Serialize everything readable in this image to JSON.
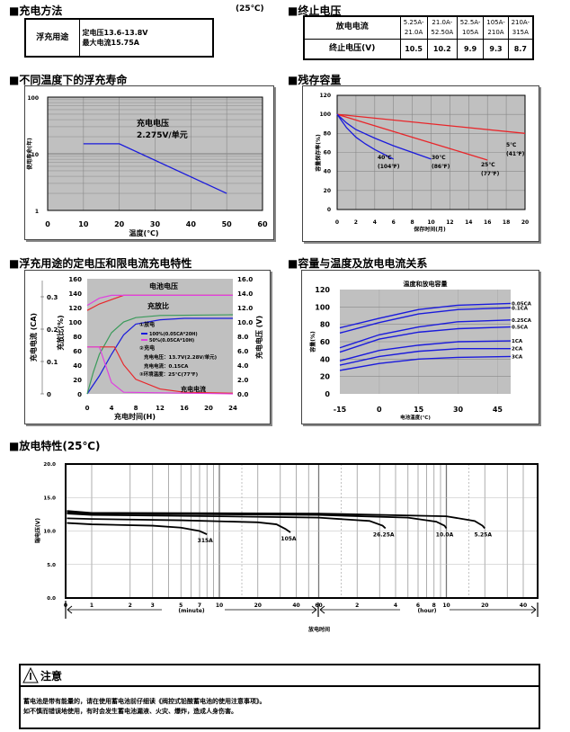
{
  "charging_method": {
    "title": "■充电方法",
    "temp": "(25℃)",
    "use": "浮充用途",
    "line1": "定电压13.6-13.8V",
    "line2": "最大电流15.75A"
  },
  "cutoff_voltage": {
    "title": "■终止电压",
    "row1_label": "放电电流",
    "row2_label": "终止电压(V)",
    "currents": [
      "5.25A-21.0A",
      "21.0A-52.50A",
      "52.5A-105A",
      "105A-210A",
      "210A-315A"
    ],
    "voltages": [
      "10.5",
      "10.2",
      "9.9",
      "9.3",
      "8.7"
    ]
  },
  "headings": {
    "float_life": "■不同温度下的浮充寿命",
    "residual": "■残存容量",
    "charging": "■浮充用途的定电压和限电流充电特性",
    "temp_capacity": "■容量与温度及放电电流关系",
    "discharge": "■放电特性(25℃)"
  },
  "warning": {
    "title": "注意",
    "line1": "蓄电池是带有能量的，请在使用蓄电池前仔细读《阀控式铅酸蓄电池的使用注意事项》。",
    "line2": "如不慎而错误地使用，有时会发生蓄电池漏液、火灾、爆炸，造成人身伤害。"
  },
  "colors": {
    "blue": "#1a1adc",
    "red": "#e8262a",
    "magenta": "#e040e0",
    "green": "#3a9a5a",
    "plot_bg": "#c0c0c0",
    "black": "#000000"
  },
  "chart_data": [
    {
      "type": "line",
      "id": "float_life",
      "title": "",
      "xlabel": "温度(℃)",
      "ylabel": "使用寿命(年)",
      "xlim": [
        0,
        60
      ],
      "ylim": [
        1,
        100
      ],
      "yscale": "log",
      "xticks": [
        "0",
        "10",
        "20",
        "30",
        "40",
        "50",
        "60"
      ],
      "yticks": [
        "1",
        "10",
        "100"
      ],
      "series": [
        {
          "name": "2.275V/单元",
          "color": "#1a1adc",
          "points": [
            [
              10,
              15
            ],
            [
              20,
              15
            ],
            [
              50,
              2
            ]
          ]
        }
      ],
      "annotations": [
        "充电电压",
        "2.275V/单元"
      ]
    },
    {
      "type": "line",
      "id": "residual",
      "title": "",
      "xlabel": "保存时间(月)",
      "ylabel": "容量保存率(%)",
      "xlim": [
        0,
        20
      ],
      "ylim": [
        0,
        120
      ],
      "xticks": [
        "0",
        "2",
        "4",
        "6",
        "8",
        "10",
        "12",
        "14",
        "16",
        "18",
        "20"
      ],
      "yticks": [
        "0",
        "20",
        "40",
        "60",
        "80",
        "100",
        "120"
      ],
      "series": [
        {
          "name": "5℃",
          "color": "#e8262a",
          "points": [
            [
              0,
              100
            ],
            [
              20,
              80
            ]
          ]
        },
        {
          "name": "25℃",
          "color": "#e8262a",
          "points": [
            [
              0,
              100
            ],
            [
              4,
              88
            ],
            [
              8,
              76
            ],
            [
              12,
              64
            ],
            [
              16,
              52
            ]
          ]
        },
        {
          "name": "30℃",
          "color": "#1a1adc",
          "points": [
            [
              0,
              100
            ],
            [
              1,
              91
            ],
            [
              2,
              84
            ],
            [
              4,
              75
            ],
            [
              6,
              67
            ],
            [
              8,
              60
            ],
            [
              10,
              53
            ]
          ]
        },
        {
          "name": "40℃",
          "color": "#1a1adc",
          "points": [
            [
              0,
              100
            ],
            [
              1,
              86
            ],
            [
              2,
              76
            ],
            [
              3,
              69
            ],
            [
              4,
              63
            ],
            [
              6,
              53
            ]
          ]
        }
      ],
      "annotations": [
        "5℃",
        "(41℉)",
        "25℃",
        "(77℉)",
        "30℃",
        "(86℉)",
        "40℃",
        "(104℉)"
      ]
    },
    {
      "type": "line",
      "id": "charging",
      "title": "",
      "xlabel": "充电时间(H)",
      "ylabel_left_current": "充电电流 (CA)",
      "ylabel_left": "充放比(%)",
      "ylabel_right": "充电电压 (V)",
      "xlim": [
        0,
        24
      ],
      "ylim": [
        0,
        160
      ],
      "ylim_right": [
        0,
        16
      ],
      "xticks": [
        "0",
        "4",
        "8",
        "12",
        "16",
        "20",
        "24"
      ],
      "yticks": [
        "0",
        "20",
        "40",
        "60",
        "80",
        "100",
        "120",
        "140",
        "160"
      ],
      "yticks_right": [
        "0.0",
        "2.0",
        "4.0",
        "6.0",
        "8.0",
        "10.0",
        "12.0",
        "14.0",
        "16.0"
      ],
      "current_ticks": [
        "0",
        "0.1",
        "0.2",
        "0.3"
      ],
      "series": [
        {
          "name": "电池电压 100%",
          "axis": "V",
          "color": "#e8262a",
          "points": [
            [
              0,
              11.6
            ],
            [
              2,
              12.5
            ],
            [
              4,
              13.1
            ],
            [
              6,
              13.7
            ],
            [
              24,
              13.7
            ]
          ]
        },
        {
          "name": "电池电压 50%",
          "axis": "V",
          "color": "#e040e0",
          "points": [
            [
              0,
              12.3
            ],
            [
              2,
              13.3
            ],
            [
              4,
              13.7
            ],
            [
              24,
              13.7
            ]
          ]
        },
        {
          "name": "充放比 100%",
          "axis": "%",
          "color": "#1a1adc",
          "points": [
            [
              0,
              0
            ],
            [
              2,
              25
            ],
            [
              4,
              55
            ],
            [
              6,
              82
            ],
            [
              8,
              97
            ],
            [
              12,
              103
            ],
            [
              16,
              105
            ],
            [
              24,
              105
            ]
          ]
        },
        {
          "name": "充放比 50%",
          "axis": "%",
          "color": "#3a9a5a",
          "points": [
            [
              0,
              0
            ],
            [
              1,
              30
            ],
            [
              2,
              55
            ],
            [
              4,
              85
            ],
            [
              6,
              100
            ],
            [
              8,
              106
            ],
            [
              12,
              109
            ],
            [
              24,
              110
            ]
          ]
        },
        {
          "name": "充电电流 100%",
          "axis": "CA",
          "color": "#e8262a",
          "points": [
            [
              0,
              0.145
            ],
            [
              4.5,
              0.145
            ],
            [
              6,
              0.09
            ],
            [
              8,
              0.045
            ],
            [
              12,
              0.015
            ],
            [
              16,
              0.005
            ],
            [
              24,
              0.002
            ]
          ]
        },
        {
          "name": "充电电流 50%",
          "axis": "CA",
          "color": "#e040e0",
          "points": [
            [
              0,
              0.145
            ],
            [
              2,
              0.145
            ],
            [
              3,
              0.09
            ],
            [
              4,
              0.035
            ],
            [
              6,
              0.005
            ],
            [
              24,
              0
            ]
          ]
        }
      ],
      "annotations": [
        "电池电压",
        "充放比",
        "①放电",
        "100%(0.05CA*20H)",
        "50%(0.05CA*10H)",
        "②充电",
        "充电电压：13.7V(2.28V/单元)",
        "充电电流：0.15CA",
        "③环境温度：25℃(77℉)",
        "充电电流"
      ]
    },
    {
      "type": "line",
      "id": "temp_capacity",
      "title": "温度和放电容量",
      "xlabel": "电池温度(℃)",
      "ylabel": "容量(%)",
      "xlim": [
        -15,
        50
      ],
      "ylim": [
        0,
        120
      ],
      "xticks": [
        "-15",
        "0",
        "15",
        "30",
        "45"
      ],
      "yticks": [
        "0",
        "20",
        "40",
        "60",
        "80",
        "100",
        "120"
      ],
      "series": [
        {
          "name": "0.05CA",
          "color": "#1a1adc",
          "points": [
            [
              -15,
              76
            ],
            [
              0,
              87
            ],
            [
              15,
              97
            ],
            [
              30,
              102
            ],
            [
              50,
              104
            ]
          ]
        },
        {
          "name": "0.1CA",
          "color": "#1a1adc",
          "points": [
            [
              -15,
              70
            ],
            [
              0,
              82
            ],
            [
              15,
              92
            ],
            [
              30,
              97
            ],
            [
              50,
              99
            ]
          ]
        },
        {
          "name": "0.25CA",
          "color": "#1a1adc",
          "points": [
            [
              -15,
              53
            ],
            [
              0,
              68
            ],
            [
              15,
              77
            ],
            [
              30,
              83
            ],
            [
              50,
              85
            ]
          ]
        },
        {
          "name": "0.5CA",
          "color": "#1a1adc",
          "points": [
            [
              -15,
              48
            ],
            [
              0,
              63
            ],
            [
              15,
              71
            ],
            [
              30,
              75
            ],
            [
              50,
              77
            ]
          ]
        },
        {
          "name": "1CA",
          "color": "#1a1adc",
          "points": [
            [
              -15,
              38
            ],
            [
              0,
              50
            ],
            [
              15,
              56
            ],
            [
              30,
              60
            ],
            [
              50,
              61
            ]
          ]
        },
        {
          "name": "2CA",
          "color": "#1a1adc",
          "points": [
            [
              -15,
              33
            ],
            [
              0,
              43
            ],
            [
              15,
              49
            ],
            [
              30,
              52
            ],
            [
              50,
              52
            ]
          ]
        },
        {
          "name": "3CA",
          "color": "#1a1adc",
          "points": [
            [
              -15,
              27
            ],
            [
              0,
              35
            ],
            [
              15,
              40
            ],
            [
              30,
              42
            ],
            [
              50,
              43
            ]
          ]
        }
      ]
    },
    {
      "type": "line",
      "id": "discharge",
      "title": "",
      "xlabel": "放电时间",
      "ylabel": "端电压(V)",
      "ylim": [
        0,
        20
      ],
      "xunit_left": "(minute)",
      "xunit_right": "(hour)",
      "xticks_minute": [
        "0",
        "1",
        "2",
        "3",
        "5",
        "7",
        "10",
        "20",
        "40",
        "60"
      ],
      "xticks_hour": [
        "2",
        "4",
        "6",
        "8",
        "10",
        "20",
        "40"
      ],
      "yticks": [
        "0.0",
        "5.0",
        "10.0",
        "15.0",
        "20.0"
      ],
      "series": [
        {
          "name": "315A",
          "color": "#000000",
          "minutes": [
            [
              0.05,
              11.2
            ],
            [
              1,
              11.0
            ],
            [
              3,
              10.8
            ],
            [
              5,
              10.5
            ],
            [
              7,
              10.0
            ],
            [
              8,
              9.5
            ]
          ]
        },
        {
          "name": "105A",
          "color": "#000000",
          "minutes": [
            [
              0.05,
              11.9
            ],
            [
              1,
              11.8
            ],
            [
              5,
              11.6
            ],
            [
              20,
              11.3
            ],
            [
              28,
              11.0
            ],
            [
              33,
              10.3
            ],
            [
              36,
              9.8
            ]
          ]
        },
        {
          "name": "26.25A",
          "color": "#000000",
          "minutes": [
            [
              0.05,
              12.6
            ],
            [
              1,
              12.4
            ],
            [
              10,
              12.2
            ],
            [
              60,
              12.0
            ],
            [
              150,
              11.5
            ],
            [
              190,
              10.8
            ],
            [
              200,
              10.4
            ]
          ]
        },
        {
          "name": "10.0A",
          "color": "#000000",
          "minutes": [
            [
              0.05,
              12.8
            ],
            [
              1,
              12.6
            ],
            [
              60,
              12.4
            ],
            [
              300,
              12.0
            ],
            [
              500,
              11.4
            ],
            [
              580,
              10.8
            ],
            [
              600,
              10.4
            ]
          ]
        },
        {
          "name": "5.25A",
          "color": "#000000",
          "minutes": [
            [
              0.05,
              13.0
            ],
            [
              1,
              12.7
            ],
            [
              60,
              12.6
            ],
            [
              600,
              12.2
            ],
            [
              1000,
              11.5
            ],
            [
              1150,
              10.8
            ],
            [
              1200,
              10.4
            ]
          ]
        }
      ]
    }
  ]
}
